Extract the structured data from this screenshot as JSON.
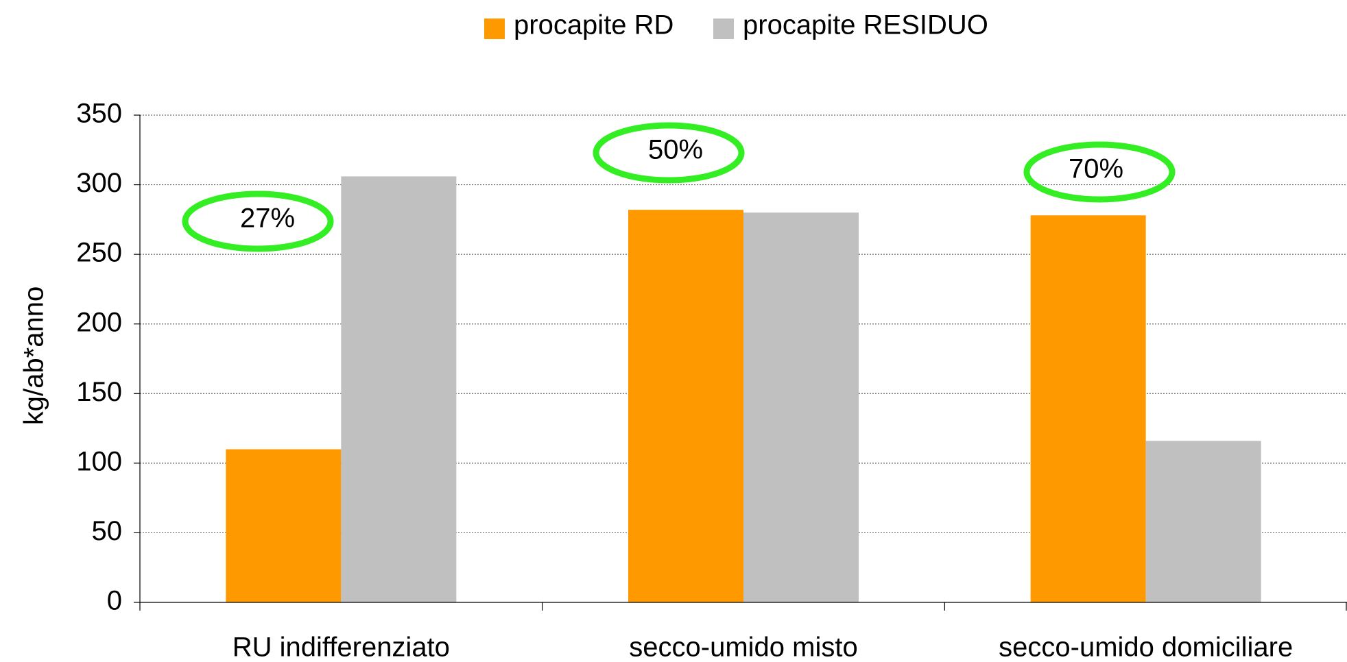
{
  "chart_data": {
    "type": "bar",
    "categories": [
      "RU indifferenziato",
      "secco-umido misto",
      "secco-umido domiciliare"
    ],
    "series": [
      {
        "name": "procapite RD",
        "color": "#ff9900",
        "values": [
          110,
          282,
          278
        ]
      },
      {
        "name": "procapite RESIDUO",
        "color": "#c0c0c0",
        "values": [
          306,
          280,
          116
        ]
      }
    ],
    "y_label": "kg/ab*anno",
    "ylim": [
      0,
      350
    ],
    "yticks": [
      0,
      50,
      100,
      150,
      200,
      250,
      300,
      350
    ],
    "grid": true,
    "legend": "top",
    "annotations": [
      "27%",
      "50%",
      "70%"
    ],
    "annotation_color": "#33ee22"
  }
}
